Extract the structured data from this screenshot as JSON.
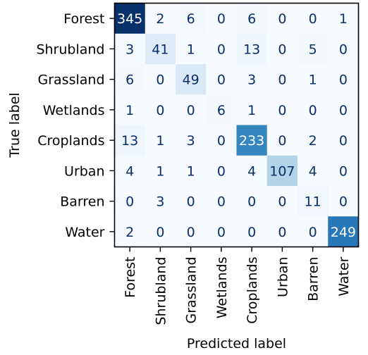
{
  "chart_data": {
    "type": "heatmap",
    "title": "",
    "xlabel": "Predicted label",
    "ylabel": "True label",
    "x_categories": [
      "Forest",
      "Shrubland",
      "Grassland",
      "Wetlands",
      "Croplands",
      "Urban",
      "Barren",
      "Water"
    ],
    "y_categories": [
      "Forest",
      "Shrubland",
      "Grassland",
      "Wetlands",
      "Croplands",
      "Urban",
      "Barren",
      "Water"
    ],
    "values": [
      [
        345,
        2,
        6,
        0,
        6,
        0,
        0,
        1
      ],
      [
        3,
        41,
        1,
        0,
        13,
        0,
        5,
        0
      ],
      [
        6,
        0,
        49,
        0,
        3,
        0,
        1,
        0
      ],
      [
        1,
        0,
        0,
        6,
        1,
        0,
        0,
        0
      ],
      [
        13,
        1,
        3,
        0,
        233,
        0,
        2,
        0
      ],
      [
        4,
        1,
        1,
        0,
        4,
        107,
        4,
        0
      ],
      [
        0,
        3,
        0,
        0,
        0,
        0,
        11,
        0
      ],
      [
        2,
        0,
        0,
        0,
        0,
        0,
        0,
        249
      ]
    ],
    "value_range": [
      0,
      345
    ],
    "colormap": "Blues",
    "grid": false,
    "colorbar": false
  }
}
